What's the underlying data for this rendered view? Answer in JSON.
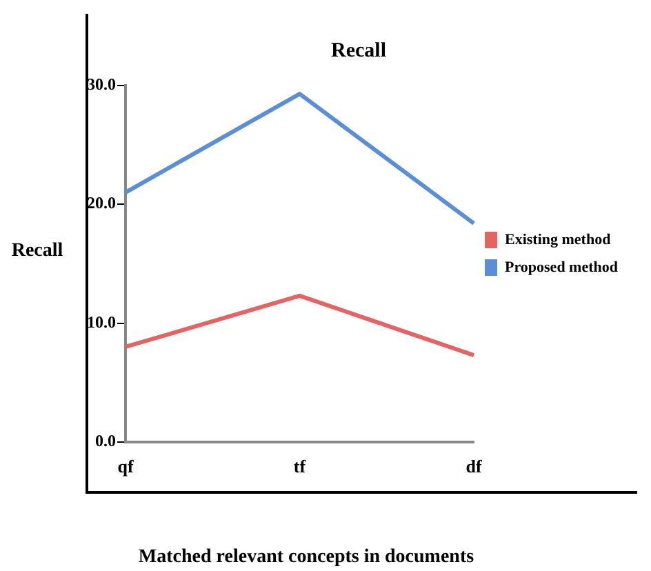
{
  "chart_data": {
    "type": "line",
    "title": "Recall",
    "xlabel": "Matched relevant concepts in documents",
    "ylabel": "Recall",
    "categories": [
      "qf",
      "tf",
      "df"
    ],
    "series": [
      {
        "name": "Existing method",
        "color": "#e46464",
        "values": [
          8.0,
          12.3,
          7.3
        ]
      },
      {
        "name": "Proposed method",
        "color": "#5b8ed6",
        "values": [
          21.0,
          29.3,
          18.4
        ]
      }
    ],
    "ylim": [
      0,
      30
    ],
    "yticks": [
      {
        "value": 0,
        "label": "0.0"
      },
      {
        "value": 10,
        "label": "10.0"
      },
      {
        "value": 20,
        "label": "20.0"
      },
      {
        "value": 30,
        "label": "30.0"
      }
    ],
    "grid": false,
    "legend": "right",
    "marker": "none",
    "line_style": "solid"
  }
}
